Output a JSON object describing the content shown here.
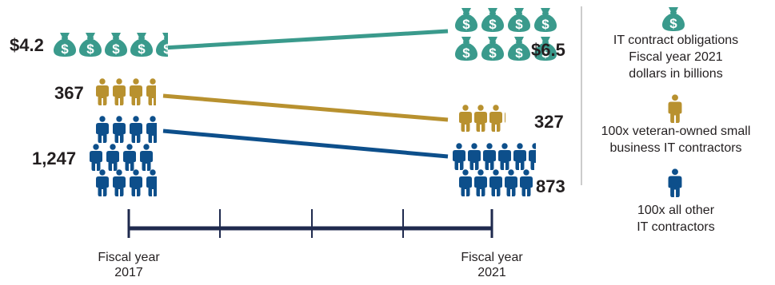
{
  "colors": {
    "money": "#3a9a8c",
    "veteran": "#b8912f",
    "other": "#0d4f8b",
    "axis": "#1f2a4e",
    "divider": "#bbbbbb",
    "text": "#231f20"
  },
  "chart_data": {
    "type": "line",
    "x": [
      "Fiscal year 2017",
      "Fiscal year 2021"
    ],
    "series": [
      {
        "name": "IT contract obligations Fiscal year 2021 dollars in billions",
        "icon": "money-bag-icon",
        "color": "#3a9a8c",
        "values": [
          4.2,
          6.5
        ],
        "labels": [
          "$4.2",
          "$6.5"
        ]
      },
      {
        "name": "100x veteran-owned small business IT contractors",
        "icon": "person-icon",
        "color": "#b8912f",
        "values": [
          367,
          327
        ],
        "labels": [
          "367",
          "327"
        ]
      },
      {
        "name": "100x all other IT contractors",
        "icon": "person-icon",
        "color": "#0d4f8b",
        "values": [
          1247,
          873
        ],
        "labels": [
          "1,247",
          "873"
        ]
      }
    ],
    "axis_labels": [
      {
        "line1": "Fiscal year",
        "line2": "2017"
      },
      {
        "line1": "Fiscal year",
        "line2": "2021"
      }
    ],
    "legend": [
      {
        "icon": "money-bag-icon",
        "lines": [
          "IT contract obligations",
          "Fiscal year 2021",
          "dollars in billions"
        ]
      },
      {
        "icon": "person-icon",
        "lines": [
          "100x veteran-owned small",
          "business IT contractors"
        ]
      },
      {
        "icon": "person-icon",
        "lines": [
          "100x all other",
          "IT contractors"
        ]
      }
    ],
    "legend_placement": "right"
  }
}
